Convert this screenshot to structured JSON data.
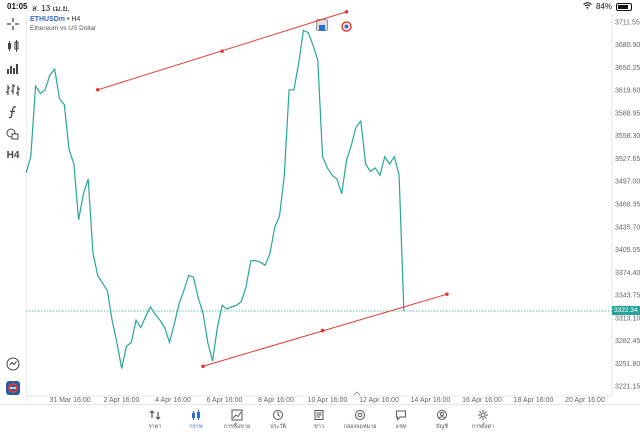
{
  "status": {
    "time": "01:05",
    "date": "ส. 13 เม.ย.",
    "battery": "84%"
  },
  "symbol": {
    "name": "ETHUSDm",
    "timeframe": "H4",
    "description": "Ethereum vs US Dollar"
  },
  "toolbar": {
    "timeframe_label": "H4"
  },
  "current_price": "3322.34",
  "chart_data": {
    "type": "line",
    "x_ticks": [
      "31 Mar 16:00",
      "2 Apr 16:00",
      "4 Apr 16:00",
      "6 Apr 16:00",
      "8 Apr 16:00",
      "10 Apr 16:00",
      "12 Apr 16:00",
      "14 Apr 16:00",
      "16 Apr 16:00",
      "18 Apr 16:00",
      "20 Apr 16:00"
    ],
    "y_ticks": [
      "3711.55",
      "3680.90",
      "3650.25",
      "3619.60",
      "3588.95",
      "3558.30",
      "3527.65",
      "3497.00",
      "3466.35",
      "3435.70",
      "3405.05",
      "3374.40",
      "3343.75",
      "3313.10",
      "3282.45",
      "3251.80",
      "3221.15"
    ],
    "ylim": [
      3208,
      3722
    ],
    "xlim": [
      0,
      120
    ],
    "series": [
      {
        "values": [
          [
            0,
            3508
          ],
          [
            1,
            3530
          ],
          [
            2,
            3625
          ],
          [
            3,
            3615
          ],
          [
            4,
            3620
          ],
          [
            5,
            3640
          ],
          [
            6,
            3648
          ],
          [
            7,
            3608
          ],
          [
            8,
            3600
          ],
          [
            9,
            3540
          ],
          [
            10,
            3520
          ],
          [
            11,
            3445
          ],
          [
            12,
            3480
          ],
          [
            13,
            3500
          ],
          [
            14,
            3400
          ],
          [
            15,
            3370
          ],
          [
            16,
            3360
          ],
          [
            17,
            3350
          ],
          [
            18,
            3310
          ],
          [
            19,
            3280
          ],
          [
            20,
            3245
          ],
          [
            21,
            3275
          ],
          [
            22,
            3280
          ],
          [
            23,
            3310
          ],
          [
            24,
            3300
          ],
          [
            25,
            3315
          ],
          [
            26,
            3328
          ],
          [
            27,
            3318
          ],
          [
            28,
            3310
          ],
          [
            29,
            3300
          ],
          [
            30,
            3280
          ],
          [
            31,
            3305
          ],
          [
            32,
            3332
          ],
          [
            33,
            3350
          ],
          [
            34,
            3370
          ],
          [
            35,
            3368
          ],
          [
            36,
            3340
          ],
          [
            37,
            3320
          ],
          [
            38,
            3280
          ],
          [
            39,
            3255
          ],
          [
            40,
            3300
          ],
          [
            41,
            3330
          ],
          [
            42,
            3325
          ],
          [
            43,
            3328
          ],
          [
            44,
            3330
          ],
          [
            45,
            3335
          ],
          [
            46,
            3355
          ],
          [
            47,
            3390
          ],
          [
            48,
            3390
          ],
          [
            49,
            3388
          ],
          [
            50,
            3384
          ],
          [
            51,
            3400
          ],
          [
            52,
            3435
          ],
          [
            53,
            3450
          ],
          [
            54,
            3505
          ],
          [
            55,
            3620
          ],
          [
            56,
            3620
          ],
          [
            57,
            3655
          ],
          [
            58,
            3700
          ],
          [
            59,
            3697
          ],
          [
            60,
            3680
          ],
          [
            61,
            3660
          ],
          [
            62,
            3530
          ],
          [
            63,
            3515
          ],
          [
            64,
            3505
          ],
          [
            65,
            3500
          ],
          [
            66,
            3480
          ],
          [
            67,
            3525
          ],
          [
            68,
            3545
          ],
          [
            69,
            3570
          ],
          [
            70,
            3578
          ],
          [
            71,
            3520
          ],
          [
            72,
            3510
          ],
          [
            73,
            3515
          ],
          [
            74,
            3505
          ],
          [
            75,
            3530
          ],
          [
            76,
            3520
          ],
          [
            77,
            3530
          ],
          [
            78,
            3505
          ],
          [
            79,
            3322
          ]
        ]
      }
    ],
    "trendlines": [
      {
        "from": [
          15,
          3620
        ],
        "to": [
          67,
          3725
        ],
        "mid": [
          41,
          3672
        ]
      },
      {
        "from": [
          37,
          3248
        ],
        "to": [
          88,
          3345
        ],
        "mid": [
          62,
          3296
        ]
      }
    ]
  },
  "nav": [
    {
      "label": "ราคา",
      "icon": "quotes-icon"
    },
    {
      "label": "กราฟ",
      "icon": "chart-icon",
      "active": true
    },
    {
      "label": "การซื้อขาย",
      "icon": "trade-icon"
    },
    {
      "label": "ประวัติ",
      "icon": "history-icon"
    },
    {
      "label": "ข่าว",
      "icon": "news-icon"
    },
    {
      "label": "กล่องจดหมาย",
      "icon": "mail-icon"
    },
    {
      "label": "แชท",
      "icon": "chat-icon"
    },
    {
      "label": "บัญชี",
      "icon": "account-icon"
    },
    {
      "label": "การตั้งค่า",
      "icon": "settings-icon"
    }
  ]
}
